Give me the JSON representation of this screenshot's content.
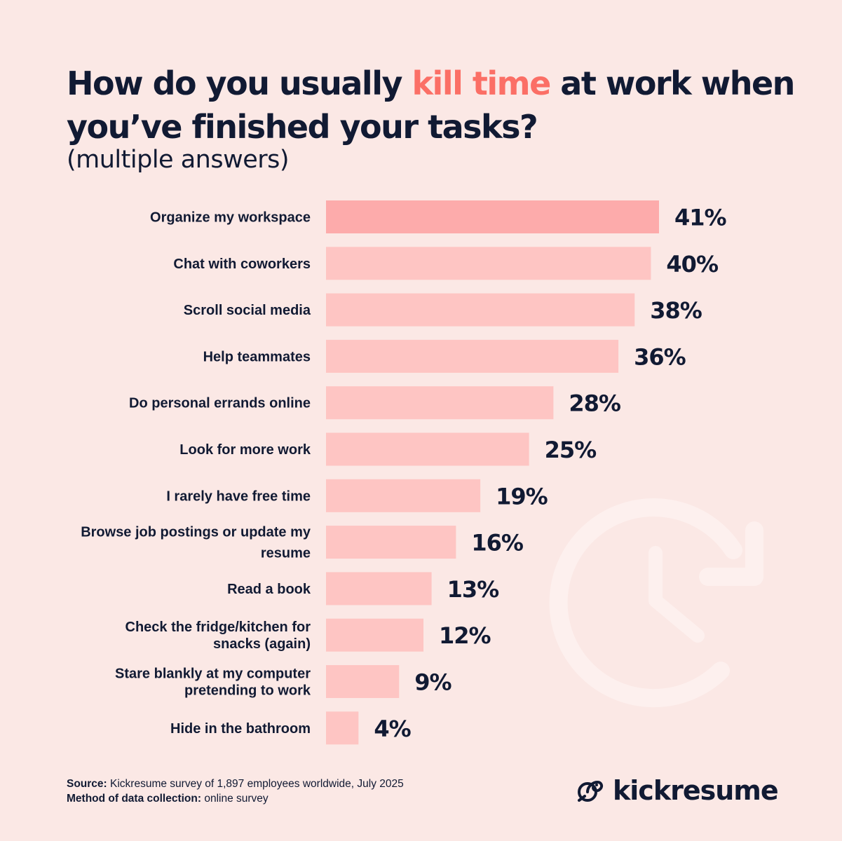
{
  "header": {
    "title_before": "How do you usually ",
    "title_accent": "kill time",
    "title_after": " at work when you’ve finished your tasks?",
    "subtitle": "(multiple answers)"
  },
  "chart_data": {
    "type": "bar",
    "orientation": "horizontal",
    "categories": [
      "Organize my workspace",
      "Chat with coworkers",
      "Scroll social media",
      "Help teammates",
      "Do personal errands online",
      "Look for more work",
      "I rarely have free time",
      "Browse job postings or update my resume",
      "Read a book",
      "Check the fridge/kitchen for snacks (again)",
      "Stare blankly at my computer pretending to work",
      "Hide in the bathroom"
    ],
    "category_lines": [
      [
        "Organize my workspace"
      ],
      [
        "Chat with coworkers"
      ],
      [
        "Scroll social media"
      ],
      [
        "Help teammates"
      ],
      [
        "Do personal errands online"
      ],
      [
        "Look for more work"
      ],
      [
        "I rarely have free time"
      ],
      [
        "Browse job postings or update my",
        "resume"
      ],
      [
        "Read a book"
      ],
      [
        "Check the fridge/kitchen for",
        "snacks (again)"
      ],
      [
        "Stare blankly at my computer",
        "pretending to work"
      ],
      [
        "Hide in the bathroom"
      ]
    ],
    "values": [
      41,
      40,
      38,
      36,
      28,
      25,
      19,
      16,
      13,
      12,
      9,
      4
    ],
    "value_labels": [
      "41%",
      "40%",
      "38%",
      "36%",
      "28%",
      "25%",
      "19%",
      "16%",
      "13%",
      "12%",
      "9%",
      "4%"
    ],
    "unit": "%",
    "xlim": [
      0,
      41
    ],
    "grid": false,
    "colors": {
      "top_bar": "#fdabab",
      "bar": "#fec5c3",
      "label": "#111a33"
    }
  },
  "footer": {
    "source_label": "Source:",
    "source_text": " Kickresume survey of 1,897 employees worldwide, July 2025",
    "method_label": "Method of data collection:",
    "method_text": " online survey"
  },
  "brand": {
    "name": "kickresume",
    "icon": "kickresume-logo-icon"
  },
  "decoration": {
    "icon": "clock-refresh-icon",
    "color": "#fdf0ee"
  }
}
